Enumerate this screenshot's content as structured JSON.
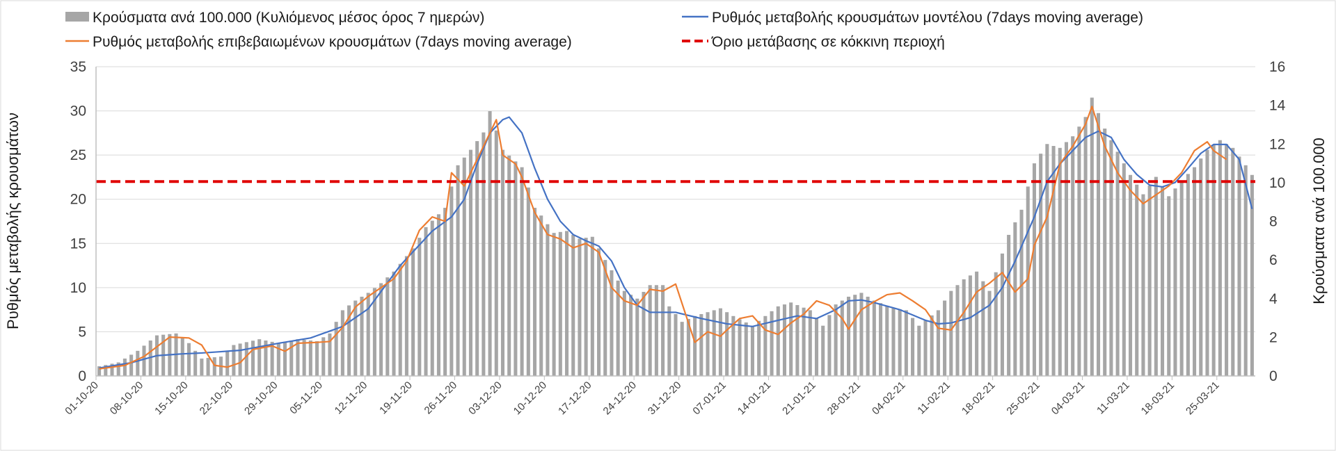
{
  "chart_data": {
    "type": "bar+line",
    "title": "",
    "ylabel_left": "Ρυθμός μεταβολής κρουσμάτων",
    "ylabel_right": "Κρούσματα ανά 100.000",
    "ylim_left": [
      0,
      35
    ],
    "ylim_right": [
      0,
      16
    ],
    "yticks_left": [
      "0",
      "5",
      "10",
      "15",
      "20",
      "25",
      "30",
      "35"
    ],
    "yticks_right": [
      "0",
      "2",
      "4",
      "6",
      "8",
      "10",
      "12",
      "14",
      "16"
    ],
    "grid": true,
    "legend": {
      "placement": "top",
      "bars": "Κρούσματα ανά 100.000 (Κυλιόμενος μέσος όρος 7 ημερών)",
      "model": "Ρυθμός μεταβολής κρουσμάτων μοντέλου (7days moving average)",
      "confirmed": "Ρυθμός μεταβολής επιβεβαιωμένων κρουσμάτων (7days moving average)",
      "threshold": "Όριο μετάβασης σε κόκκινη περιοχή"
    },
    "colors": {
      "bars": "#a6a6a6",
      "model": "#4472c4",
      "confirmed": "#ed7d31",
      "threshold": "#e00000"
    },
    "threshold_value": 22,
    "x_tick_labels": [
      "01-10-20",
      "08-10-20",
      "15-10-20",
      "22-10-20",
      "29-10-20",
      "05-11-20",
      "12-11-20",
      "19-11-20",
      "26-11-20",
      "03-12-20",
      "10-12-20",
      "17-12-20",
      "24-12-20",
      "31-12-20",
      "07-01-21",
      "14-01-21",
      "21-01-21",
      "28-01-21",
      "04-02-21",
      "11-02-21",
      "18-02-21",
      "25-02-21",
      "04-03-21",
      "11-03-21",
      "18-03-21",
      "25-03-21"
    ],
    "days": 181,
    "bars_anchors_right_axis": [
      [
        0,
        0.5
      ],
      [
        3,
        0.7
      ],
      [
        6,
        1.3
      ],
      [
        9,
        2.1
      ],
      [
        12,
        2.2
      ],
      [
        14,
        1.7
      ],
      [
        16,
        0.9
      ],
      [
        19,
        1.0
      ],
      [
        21,
        1.6
      ],
      [
        25,
        1.9
      ],
      [
        28,
        1.7
      ],
      [
        31,
        1.9
      ],
      [
        34,
        1.8
      ],
      [
        36,
        2.2
      ],
      [
        38,
        3.4
      ],
      [
        40,
        3.9
      ],
      [
        42,
        4.3
      ],
      [
        44,
        4.8
      ],
      [
        46,
        5.4
      ],
      [
        49,
        6.6
      ],
      [
        51,
        7.7
      ],
      [
        54,
        8.7
      ],
      [
        56,
        10.9
      ],
      [
        58,
        11.7
      ],
      [
        60,
        12.6
      ],
      [
        61,
        13.7
      ],
      [
        63,
        11.7
      ],
      [
        64,
        11.4
      ],
      [
        66,
        10.8
      ],
      [
        68,
        8.7
      ],
      [
        69,
        8.3
      ],
      [
        71,
        7.4
      ],
      [
        73,
        7.5
      ],
      [
        75,
        7.1
      ],
      [
        77,
        7.2
      ],
      [
        79,
        6.0
      ],
      [
        82,
        4.4
      ],
      [
        84,
        4.0
      ],
      [
        86,
        4.7
      ],
      [
        88,
        4.7
      ],
      [
        89,
        3.6
      ],
      [
        91,
        2.8
      ],
      [
        93,
        3.1
      ],
      [
        95,
        3.3
      ],
      [
        97,
        3.5
      ],
      [
        99,
        3.1
      ],
      [
        102,
        2.6
      ],
      [
        104,
        3.1
      ],
      [
        106,
        3.6
      ],
      [
        108,
        3.8
      ],
      [
        111,
        3.4
      ],
      [
        113,
        2.6
      ],
      [
        115,
        3.7
      ],
      [
        117,
        4.1
      ],
      [
        119,
        4.3
      ],
      [
        121,
        3.9
      ],
      [
        124,
        3.5
      ],
      [
        126,
        3.4
      ],
      [
        128,
        2.6
      ],
      [
        131,
        3.4
      ],
      [
        133,
        4.4
      ],
      [
        135,
        5.0
      ],
      [
        137,
        5.4
      ],
      [
        139,
        4.4
      ],
      [
        142,
        7.3
      ],
      [
        144,
        8.6
      ],
      [
        146,
        11.0
      ],
      [
        148,
        12.0
      ],
      [
        150,
        11.8
      ],
      [
        152,
        12.4
      ],
      [
        154,
        13.4
      ],
      [
        155,
        14.4
      ],
      [
        157,
        12.8
      ],
      [
        159,
        11.6
      ],
      [
        161,
        10.4
      ],
      [
        163,
        9.4
      ],
      [
        165,
        10.3
      ],
      [
        167,
        9.3
      ],
      [
        169,
        10.1
      ],
      [
        171,
        10.8
      ],
      [
        173,
        11.7
      ],
      [
        175,
        12.2
      ],
      [
        177,
        11.8
      ],
      [
        179,
        10.9
      ],
      [
        180,
        10.4
      ]
    ],
    "model_series_anchors": [
      [
        0,
        0.9
      ],
      [
        5,
        1.5
      ],
      [
        9,
        2.3
      ],
      [
        13,
        2.5
      ],
      [
        16,
        2.6
      ],
      [
        22,
        2.9
      ],
      [
        28,
        3.7
      ],
      [
        33,
        4.3
      ],
      [
        38,
        5.6
      ],
      [
        42,
        7.6
      ],
      [
        47,
        12.5
      ],
      [
        52,
        16.4
      ],
      [
        55,
        18.0
      ],
      [
        57,
        20.0
      ],
      [
        59,
        24.0
      ],
      [
        61,
        27.5
      ],
      [
        63,
        29.0
      ],
      [
        64,
        29.3
      ],
      [
        66,
        27.5
      ],
      [
        68,
        23.5
      ],
      [
        70,
        20.0
      ],
      [
        72,
        17.5
      ],
      [
        74,
        16.0
      ],
      [
        76,
        15.3
      ],
      [
        78,
        14.7
      ],
      [
        80,
        13.0
      ],
      [
        82,
        10.0
      ],
      [
        84,
        8.0
      ],
      [
        86,
        7.2
      ],
      [
        90,
        7.2
      ],
      [
        94,
        6.5
      ],
      [
        98,
        5.9
      ],
      [
        102,
        5.6
      ],
      [
        106,
        6.3
      ],
      [
        109,
        6.8
      ],
      [
        112,
        6.5
      ],
      [
        115,
        7.5
      ],
      [
        117,
        8.5
      ],
      [
        119,
        8.6
      ],
      [
        121,
        8.3
      ],
      [
        125,
        7.5
      ],
      [
        129,
        6.3
      ],
      [
        131,
        5.9
      ],
      [
        133,
        6.0
      ],
      [
        136,
        6.6
      ],
      [
        139,
        8.0
      ],
      [
        141,
        10.0
      ],
      [
        143,
        13.0
      ],
      [
        146,
        18.0
      ],
      [
        148,
        22.0
      ],
      [
        150,
        24.0
      ],
      [
        152,
        25.5
      ],
      [
        154,
        27.0
      ],
      [
        156,
        27.7
      ],
      [
        158,
        27.0
      ],
      [
        160,
        24.5
      ],
      [
        162,
        22.8
      ],
      [
        164,
        21.6
      ],
      [
        166,
        21.4
      ],
      [
        168,
        21.9
      ],
      [
        170,
        23.5
      ],
      [
        172,
        25.2
      ],
      [
        174,
        26.2
      ],
      [
        176,
        26.2
      ],
      [
        178,
        24.5
      ],
      [
        180,
        18.9
      ]
    ],
    "confirmed_series_anchors": [
      [
        0,
        0.8
      ],
      [
        4,
        1.2
      ],
      [
        7,
        2.2
      ],
      [
        9,
        3.3
      ],
      [
        11,
        4.4
      ],
      [
        14,
        4.3
      ],
      [
        16,
        3.5
      ],
      [
        18,
        1.2
      ],
      [
        20,
        1.0
      ],
      [
        22,
        1.5
      ],
      [
        24,
        3.0
      ],
      [
        27,
        3.4
      ],
      [
        29,
        2.8
      ],
      [
        31,
        3.7
      ],
      [
        34,
        3.8
      ],
      [
        36,
        3.9
      ],
      [
        38,
        5.5
      ],
      [
        40,
        7.8
      ],
      [
        42,
        9.0
      ],
      [
        44,
        10.0
      ],
      [
        46,
        11.0
      ],
      [
        48,
        13.0
      ],
      [
        50,
        16.5
      ],
      [
        52,
        18.0
      ],
      [
        54,
        17.5
      ],
      [
        55,
        23.0
      ],
      [
        57,
        21.5
      ],
      [
        59,
        24.5
      ],
      [
        61,
        27.5
      ],
      [
        62,
        29.0
      ],
      [
        63,
        25.0
      ],
      [
        65,
        24.0
      ],
      [
        66,
        22.5
      ],
      [
        68,
        18.5
      ],
      [
        70,
        16.0
      ],
      [
        72,
        15.5
      ],
      [
        74,
        14.5
      ],
      [
        76,
        15.0
      ],
      [
        78,
        14.0
      ],
      [
        80,
        10.0
      ],
      [
        82,
        8.5
      ],
      [
        84,
        8.0
      ],
      [
        86,
        9.8
      ],
      [
        88,
        9.6
      ],
      [
        90,
        10.4
      ],
      [
        92,
        6.0
      ],
      [
        93,
        3.8
      ],
      [
        95,
        5.0
      ],
      [
        97,
        4.5
      ],
      [
        98,
        5.2
      ],
      [
        100,
        6.5
      ],
      [
        102,
        6.8
      ],
      [
        104,
        5.2
      ],
      [
        106,
        4.7
      ],
      [
        108,
        6.0
      ],
      [
        110,
        7.0
      ],
      [
        112,
        8.5
      ],
      [
        114,
        8.0
      ],
      [
        116,
        6.5
      ],
      [
        117,
        5.3
      ],
      [
        119,
        7.5
      ],
      [
        121,
        8.4
      ],
      [
        123,
        9.2
      ],
      [
        125,
        9.4
      ],
      [
        127,
        8.5
      ],
      [
        129,
        7.5
      ],
      [
        131,
        5.4
      ],
      [
        133,
        5.2
      ],
      [
        135,
        7.2
      ],
      [
        137,
        9.5
      ],
      [
        139,
        10.5
      ],
      [
        141,
        11.7
      ],
      [
        143,
        9.5
      ],
      [
        145,
        11.0
      ],
      [
        146,
        14.8
      ],
      [
        148,
        18.0
      ],
      [
        150,
        24.0
      ],
      [
        152,
        26.0
      ],
      [
        154,
        28.5
      ],
      [
        155,
        30.5
      ],
      [
        157,
        26.0
      ],
      [
        159,
        23.0
      ],
      [
        161,
        21.0
      ],
      [
        163,
        19.5
      ],
      [
        165,
        20.5
      ],
      [
        167,
        21.5
      ],
      [
        169,
        23.0
      ],
      [
        171,
        25.5
      ],
      [
        173,
        26.5
      ],
      [
        174,
        25.5
      ],
      [
        176,
        24.5
      ]
    ]
  }
}
